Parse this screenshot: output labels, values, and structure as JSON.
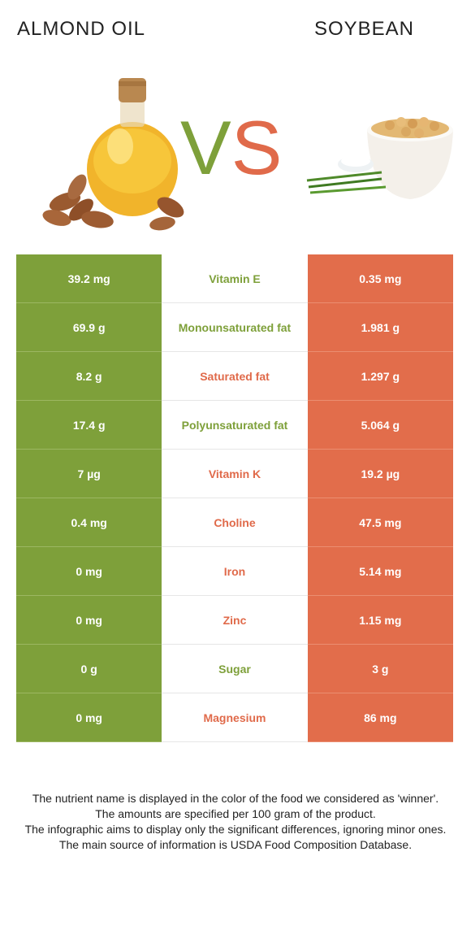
{
  "left_food": "ALMOND OIL",
  "right_food": "SOYBEAN",
  "vs": {
    "v": "V",
    "s": "S"
  },
  "colors": {
    "left": "#7ea03a",
    "right": "#e06a4a"
  },
  "rows": [
    {
      "left": "39.2 mg",
      "nutrient": "Vitamin E",
      "right": "0.35 mg",
      "winner": "left"
    },
    {
      "left": "69.9 g",
      "nutrient": "Monounsaturated fat",
      "right": "1.981 g",
      "winner": "left"
    },
    {
      "left": "8.2 g",
      "nutrient": "Saturated fat",
      "right": "1.297 g",
      "winner": "right"
    },
    {
      "left": "17.4 g",
      "nutrient": "Polyunsaturated fat",
      "right": "5.064 g",
      "winner": "left"
    },
    {
      "left": "7 µg",
      "nutrient": "Vitamin K",
      "right": "19.2 µg",
      "winner": "right"
    },
    {
      "left": "0.4 mg",
      "nutrient": "Choline",
      "right": "47.5 mg",
      "winner": "right"
    },
    {
      "left": "0 mg",
      "nutrient": "Iron",
      "right": "5.14 mg",
      "winner": "right"
    },
    {
      "left": "0 mg",
      "nutrient": "Zinc",
      "right": "1.15 mg",
      "winner": "right"
    },
    {
      "left": "0 g",
      "nutrient": "Sugar",
      "right": "3 g",
      "winner": "left"
    },
    {
      "left": "0 mg",
      "nutrient": "Magnesium",
      "right": "86 mg",
      "winner": "right"
    }
  ],
  "footer": [
    "The nutrient name is displayed in the color of the food we considered as 'winner'.",
    "The amounts are specified per 100 gram of the product.",
    "The infographic aims to display only the significant differences, ignoring minor ones.",
    "The main source of information is USDA Food Composition Database."
  ]
}
